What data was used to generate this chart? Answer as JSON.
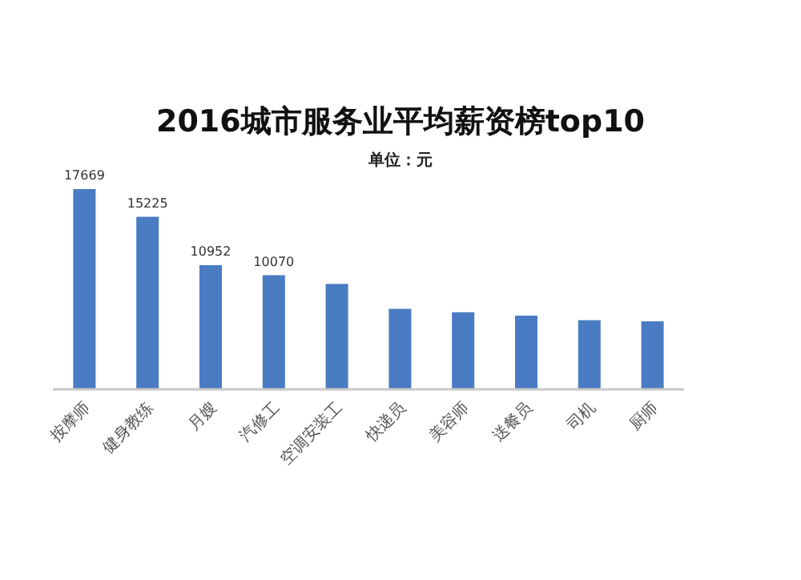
{
  "chart_data": {
    "type": "bar",
    "title": "2016城市服务业平均薪资榜top10",
    "subtitle": "单位：元",
    "categories": [
      "按摩师",
      "健身教练",
      "月嫂",
      "汽修工",
      "空调安装工",
      "快递员",
      "美容师",
      "送餐员",
      "司机",
      "厨师"
    ],
    "values": [
      17669,
      15225,
      10952,
      10070,
      9300,
      7100,
      6800,
      6500,
      6100,
      6000
    ],
    "value_labels": [
      "17669",
      "15225",
      "10952",
      "10070",
      null,
      null,
      null,
      null,
      null,
      null
    ],
    "color": "#4a7cc4"
  }
}
